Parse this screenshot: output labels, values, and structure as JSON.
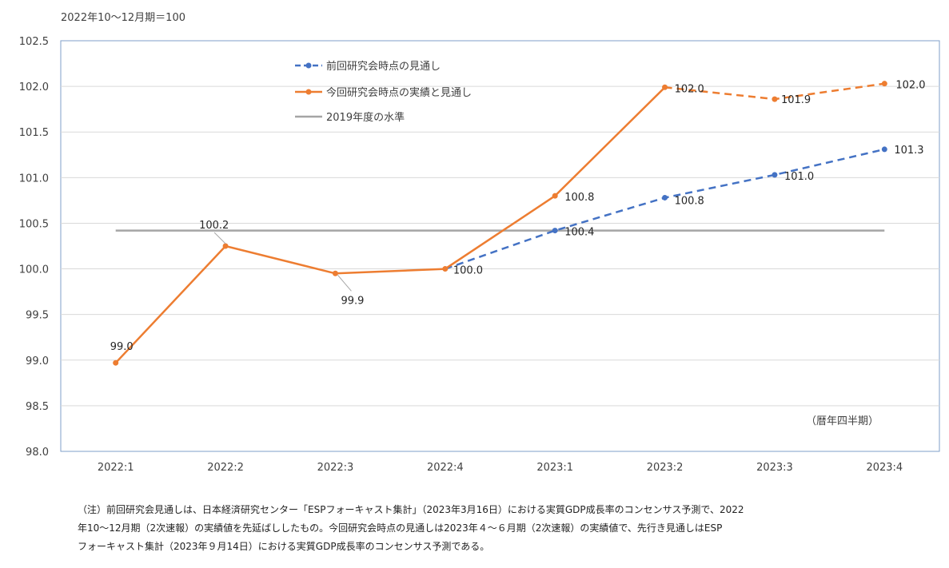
{
  "unit_label": "2022年10〜12月期＝100",
  "period_label": "（暦年四半期）",
  "note": [
    "（注）前回研究会見通しは、日本経済研究センター「ESPフォーキャスト集計」（2023年3月16日）における実質GDP成長率のコンセンサス予測で、2022",
    "年10〜12月期（2次速報）の実績値を先延ばししたもの。今回研究会時点の見通しは2023年４〜６月期（2次速報）の実績値で、先行き見通しはESP",
    "フォーキャスト集計（2023年９月14日）における実質GDP成長率のコンセンサス予測である。"
  ],
  "chart_data": {
    "type": "line",
    "categories": [
      "2022:1",
      "2022:2",
      "2022:3",
      "2022:4",
      "2023:1",
      "2023:2",
      "2023:3",
      "2023:4"
    ],
    "ylim": [
      98.0,
      102.5
    ],
    "yticks": [
      "98.0",
      "98.5",
      "99.0",
      "99.5",
      "100.0",
      "100.5",
      "101.0",
      "101.5",
      "102.0",
      "102.5"
    ],
    "grid": true,
    "legend_position": "top-left-inside",
    "series": [
      {
        "name": "前回研究会時点の見通し",
        "color": "#4472C4",
        "style": "dashed",
        "values": [
          null,
          null,
          null,
          100.0,
          100.42,
          100.78,
          101.03,
          101.31
        ],
        "labels": [
          null,
          null,
          null,
          null,
          "100.4",
          "100.8",
          "101.0",
          "101.3"
        ]
      },
      {
        "name": "今回研究会時点の実績と見通し",
        "color": "#ED7D31",
        "style": "solid-then-dashed",
        "dashed_from_index": 5,
        "values": [
          98.97,
          100.25,
          99.95,
          100.0,
          100.8,
          101.99,
          101.86,
          102.03
        ],
        "labels": [
          "99.0",
          "100.2",
          "99.9",
          "100.0",
          "100.8",
          "102.0",
          "101.9",
          "102.0"
        ]
      },
      {
        "name": "2019年度の水準",
        "color": "#A5A5A5",
        "style": "solid",
        "values": [
          100.42,
          100.42,
          100.42,
          100.42,
          100.42,
          100.42,
          100.42,
          100.42
        ],
        "labels": []
      }
    ]
  }
}
